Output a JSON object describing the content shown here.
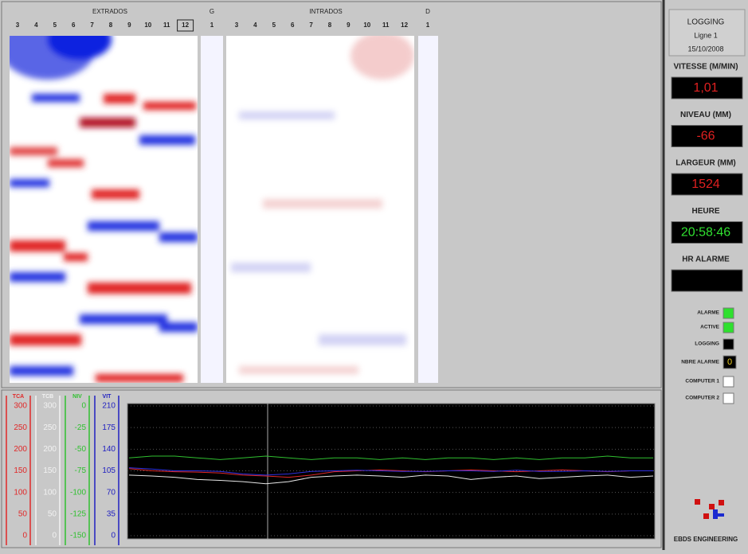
{
  "header": {
    "extrados": "EXTRADOS",
    "g": "G",
    "intrados": "INTRADOS",
    "d": "D",
    "extrados_columns": [
      "3",
      "4",
      "5",
      "6",
      "7",
      "8",
      "9",
      "10",
      "11",
      "12"
    ],
    "g_columns": [
      "1"
    ],
    "intrados_columns": [
      "3",
      "4",
      "5",
      "6",
      "7",
      "8",
      "9",
      "10",
      "11",
      "12"
    ],
    "d_columns": [
      "1"
    ]
  },
  "panel": {
    "title": "LOGGING",
    "line": "Ligne 1",
    "date": "15/10/2008",
    "readouts": [
      {
        "label": "VITESSE (M/MIN)",
        "value": "1,01",
        "color": "#e02020"
      },
      {
        "label": "NIVEAU (MM)",
        "value": "-66",
        "color": "#e02020"
      },
      {
        "label": "LARGEUR (MM)",
        "value": "1524",
        "color": "#e02020"
      },
      {
        "label": "HEURE",
        "value": "20:58:46",
        "color": "#30e030"
      },
      {
        "label": "HR ALARME"
      }
    ],
    "indicators": [
      {
        "label": "ALARME",
        "color": "#2ee02e"
      },
      {
        "label": "ACTIVE",
        "color": "#2ee02e"
      },
      {
        "label": "LOGGING",
        "color": "#000000"
      },
      {
        "label": "NBRE ALARME",
        "value": "0"
      },
      {
        "label": "COMPUTER 1",
        "color": "#ffffff"
      },
      {
        "label": "COMPUTER 2",
        "color": "#ffffff"
      }
    ],
    "company": "EBDS ENGINEERING"
  },
  "trend": {
    "type": "line",
    "axes": [
      {
        "name": "TCA",
        "color": "#e02828",
        "lim": [
          0,
          300
        ],
        "ticks": [
          300,
          250,
          200,
          150,
          100,
          50,
          0
        ]
      },
      {
        "name": "TCB",
        "color": "#f2f2f2",
        "lim": [
          0,
          300
        ],
        "ticks": [
          300,
          250,
          200,
          150,
          100,
          50,
          0
        ]
      },
      {
        "name": "NIV",
        "color": "#30c030",
        "lim": [
          -150,
          0
        ],
        "ticks": [
          0,
          -25,
          -50,
          -75,
          -100,
          -125,
          -150
        ]
      },
      {
        "name": "VIT",
        "color": "#2020c0",
        "lim": [
          0,
          210
        ],
        "ticks": [
          210,
          175,
          140,
          105,
          70,
          35,
          0
        ]
      }
    ],
    "series": [
      {
        "axis": 0,
        "color": "#e02828",
        "values": [
          155,
          150,
          148,
          147,
          145,
          140,
          138,
          135,
          140,
          148,
          150,
          152,
          150,
          148,
          150,
          152,
          150,
          148,
          150,
          152,
          150,
          148,
          150,
          150
        ]
      },
      {
        "axis": 1,
        "color": "#e8e8e8",
        "values": [
          140,
          138,
          135,
          130,
          128,
          125,
          120,
          125,
          135,
          138,
          140,
          138,
          135,
          140,
          138,
          130,
          135,
          138,
          132,
          135,
          138,
          140,
          135,
          138
        ]
      },
      {
        "axis": 2,
        "color": "#30c030",
        "values": [
          -60,
          -58,
          -58,
          -60,
          -62,
          -60,
          -58,
          -60,
          -62,
          -60,
          -60,
          -62,
          -60,
          -62,
          -60,
          -60,
          -62,
          -60,
          -62,
          -60,
          -60,
          -58,
          -60,
          -60
        ]
      },
      {
        "axis": 3,
        "color": "#3030e0",
        "values": [
          110,
          108,
          105,
          105,
          104,
          100,
          98,
          100,
          104,
          105,
          106,
          105,
          104,
          104,
          105,
          105,
          104,
          106,
          104,
          104,
          105,
          104,
          105,
          105
        ]
      }
    ]
  }
}
